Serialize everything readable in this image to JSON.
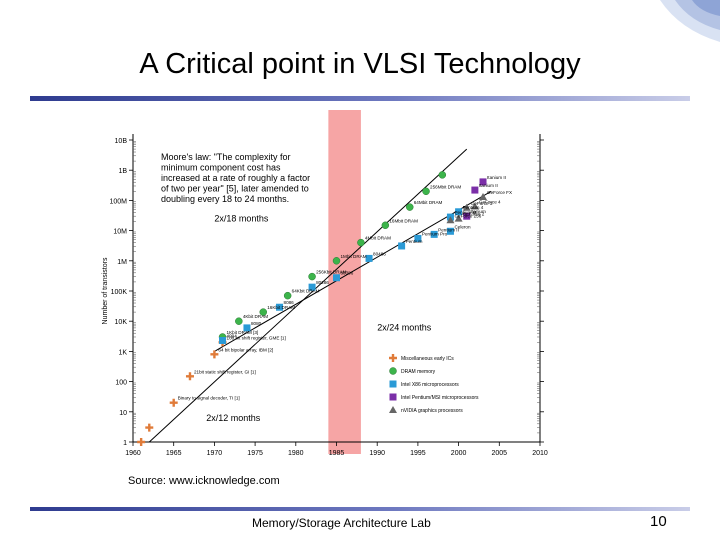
{
  "slide": {
    "title": "A Critical point in VLSI Technology",
    "source": "Source: www.icknowledge.com",
    "footer": "Memory/Storage Architecture Lab",
    "page_number": "10"
  },
  "chart_data": {
    "type": "scatter",
    "ylabel": "Number of transistors",
    "y_scale": "log",
    "y_ticks": [
      "1",
      "10",
      "100",
      "1K",
      "10K",
      "100K",
      "1M",
      "10M",
      "100M",
      "1B",
      "10B"
    ],
    "x_ticks": [
      "1960",
      "1965",
      "1970",
      "1975",
      "1980",
      "1985",
      "1990",
      "1995",
      "2000",
      "2005",
      "2010"
    ],
    "xlim": [
      1960,
      2010
    ],
    "ylim": [
      1,
      10000000000
    ],
    "highlight_band": {
      "x": [
        1984,
        1988
      ],
      "color": "#f6a5a5"
    },
    "moore_quote": [
      "Moore's law: \"The complexity for",
      "minimum component cost has",
      "increased at a rate of roughly a factor",
      "of two per year\" [5], later amended to",
      "doubling every 18 to 24 months."
    ],
    "trend_labels": [
      {
        "text": "2x/18 months",
        "x": 1970,
        "y": 20000000
      },
      {
        "text": "2x/24 months",
        "x": 1990,
        "y": 5000
      },
      {
        "text": "2x/12 months",
        "x": 1969,
        "y": 5
      }
    ],
    "trendlines": [
      {
        "name": "memory",
        "x": [
          1962,
          2001
        ],
        "y": [
          1,
          5000000000
        ]
      },
      {
        "name": "logic",
        "x": [
          1970,
          2004
        ],
        "y": [
          1000,
          200000000
        ]
      }
    ],
    "legend": {
      "position": "lower-right",
      "items": [
        {
          "label": "Miscellaneous early ICs",
          "shape": "plus",
          "color": "#e07b39"
        },
        {
          "label": "DRAM memory",
          "shape": "circle",
          "color": "#3cb44b"
        },
        {
          "label": "Intel X86 microprocessors",
          "shape": "square",
          "color": "#2a9ad6"
        },
        {
          "label": "Intel Pentium/MSI microprocessors",
          "shape": "square",
          "color": "#7b2fa8"
        },
        {
          "label": "nVIDIA graphics processors",
          "shape": "triangle",
          "color": "#666666"
        }
      ]
    },
    "series": [
      {
        "name": "Miscellaneous early ICs",
        "points": [
          {
            "x": 1961,
            "y": 1,
            "label": ""
          },
          {
            "x": 1962,
            "y": 3,
            "label": ""
          },
          {
            "x": 1965,
            "y": 20,
            "label": "Binary to signal decoder, TI [1]"
          },
          {
            "x": 1967,
            "y": 150,
            "label": "21bit static shift register, GI [1]"
          },
          {
            "x": 1970,
            "y": 800,
            "label": "64 bit bipolar array, IBM [2]"
          },
          {
            "x": 1971,
            "y": 2000,
            "label": "100 bit shift register, GME [1]"
          }
        ]
      },
      {
        "name": "DRAM memory",
        "points": [
          {
            "x": 1971,
            "y": 3000,
            "label": "1Kbit DRAM [3]"
          },
          {
            "x": 1973,
            "y": 10000,
            "label": "4Kbit DRAM"
          },
          {
            "x": 1976,
            "y": 20000,
            "label": "16Kbit DRAM"
          },
          {
            "x": 1979,
            "y": 70000,
            "label": "64Kbit DRAM"
          },
          {
            "x": 1982,
            "y": 300000,
            "label": "256Kbit DRAM"
          },
          {
            "x": 1985,
            "y": 1000000,
            "label": "1Mbit DRAM"
          },
          {
            "x": 1988,
            "y": 4000000,
            "label": "4Mbit DRAM"
          },
          {
            "x": 1991,
            "y": 15000000,
            "label": "16Mbit DRAM"
          },
          {
            "x": 1994,
            "y": 60000000,
            "label": "64Mbit DRAM"
          },
          {
            "x": 1996,
            "y": 200000000,
            "label": "256Mbit DRAM"
          },
          {
            "x": 1998,
            "y": 700000000,
            "label": ""
          }
        ]
      },
      {
        "name": "Intel X86 microprocessors",
        "points": [
          {
            "x": 1971,
            "y": 2300,
            "label": "4004"
          },
          {
            "x": 1974,
            "y": 6000,
            "label": "8080"
          },
          {
            "x": 1978,
            "y": 29000,
            "label": "8086"
          },
          {
            "x": 1982,
            "y": 134000,
            "label": "80286"
          },
          {
            "x": 1985,
            "y": 275000,
            "label": "80386"
          },
          {
            "x": 1989,
            "y": 1200000,
            "label": "80486"
          },
          {
            "x": 1993,
            "y": 3100000,
            "label": "Pentium"
          },
          {
            "x": 1995,
            "y": 5500000,
            "label": "Pentium Pro"
          },
          {
            "x": 1997,
            "y": 7500000,
            "label": "Pentium II"
          },
          {
            "x": 1999,
            "y": 9500000,
            "label": "Celeron"
          },
          {
            "x": 1999,
            "y": 28000000,
            "label": "Pentium III"
          },
          {
            "x": 2000,
            "y": 42000000,
            "label": "Pentium 4"
          }
        ]
      },
      {
        "name": "Intel Pentium/MSI microprocessors",
        "points": [
          {
            "x": 2001,
            "y": 30000000,
            "label": "Itanium"
          },
          {
            "x": 2002,
            "y": 220000000,
            "label": "Itanium II"
          },
          {
            "x": 2003,
            "y": 410000000,
            "label": "Itanium II"
          }
        ]
      },
      {
        "name": "nVIDIA graphics processors",
        "points": [
          {
            "x": 1999,
            "y": 22000000,
            "label": "GeForce 256"
          },
          {
            "x": 2000,
            "y": 25000000,
            "label": "GeForce 2"
          },
          {
            "x": 2001,
            "y": 57000000,
            "label": "GeForce 3"
          },
          {
            "x": 2002,
            "y": 63000000,
            "label": "GeForce 4"
          },
          {
            "x": 2003,
            "y": 130000000,
            "label": "GeForce FX"
          }
        ]
      }
    ]
  }
}
